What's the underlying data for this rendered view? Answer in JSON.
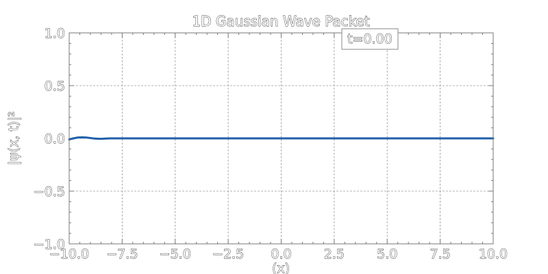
{
  "chart_data": {
    "type": "line",
    "title": "1D Gaussian Wave Packet",
    "xlabel": "(x)",
    "ylabel": "|ψ(x, t)|²",
    "xlim": [
      -10,
      10
    ],
    "ylim": [
      -1,
      1
    ],
    "grid": true,
    "x_ticks": [
      -10,
      -7.5,
      -5,
      -2.5,
      0,
      2.5,
      5,
      7.5,
      10
    ],
    "x_tick_labels": [
      "−10.0",
      "−7.5",
      "−5.0",
      "−2.5",
      "0.0",
      "2.5",
      "5.0",
      "7.5",
      "10.0"
    ],
    "y_ticks": [
      -1,
      -0.5,
      0,
      0.5,
      1
    ],
    "y_tick_labels": [
      "−1.0",
      "−0.5",
      "0.0",
      "0.5",
      "1.0"
    ],
    "annotation": "t=0.00",
    "series": [
      {
        "color": "#1f5fa8",
        "x": [
          -10,
          -9.8,
          -9.6,
          -9.4,
          -9.2,
          -9.0,
          -8.8,
          -8.6,
          -8.4,
          -8.2,
          -8.0,
          -7.5,
          -5,
          -2.5,
          0,
          2.5,
          5,
          7.5,
          10
        ],
        "y": [
          -0.01,
          0.0,
          0.008,
          0.01,
          0.008,
          0.003,
          -0.002,
          -0.004,
          -0.003,
          -0.001,
          0,
          0,
          0,
          0,
          0,
          0,
          0,
          0,
          0
        ]
      }
    ]
  }
}
